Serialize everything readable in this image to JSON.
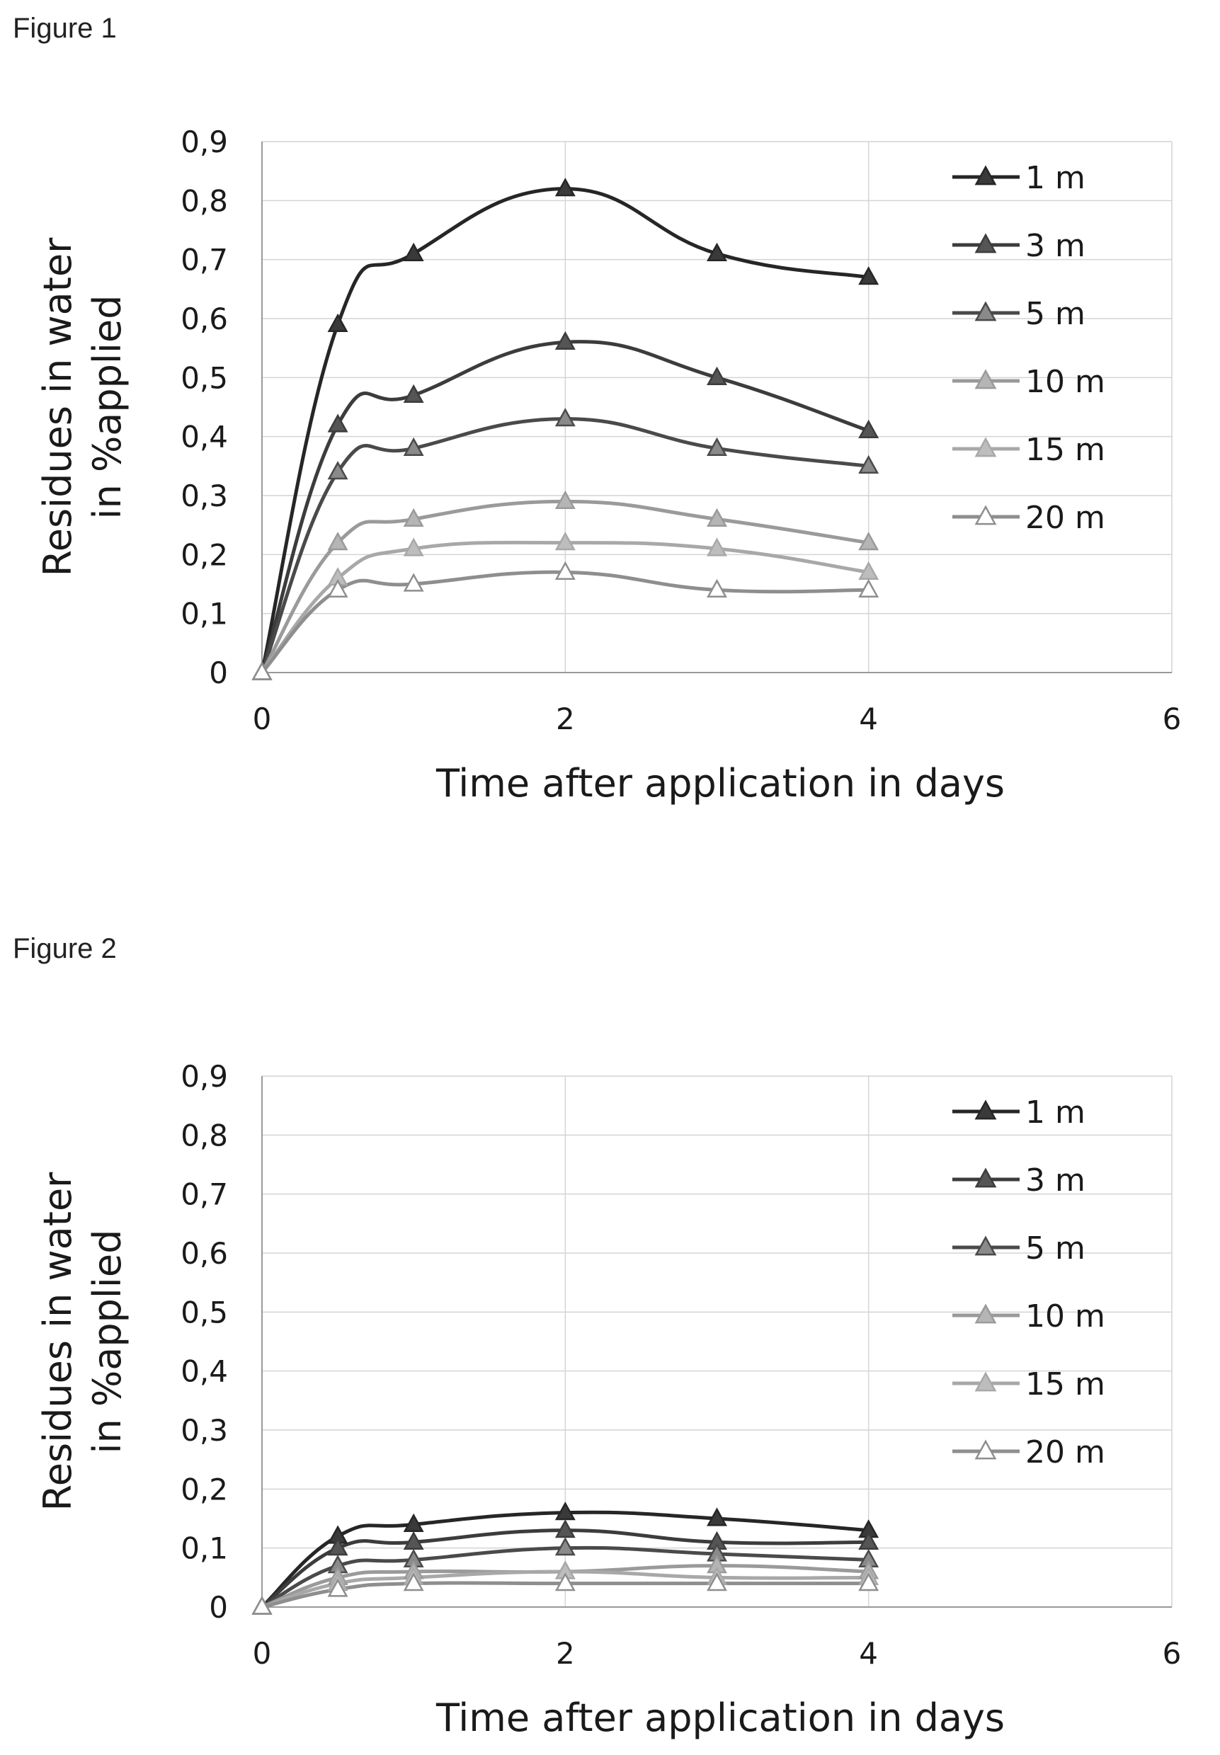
{
  "figures": [
    {
      "label": "Figure 1"
    },
    {
      "label": "Figure 2"
    }
  ],
  "chart_data": [
    {
      "type": "line",
      "title": "",
      "xlabel": "Time after application in days",
      "ylabel_lines": [
        "Residues in water",
        "in %applied"
      ],
      "xlim": [
        0,
        6
      ],
      "ylim": [
        0,
        0.9
      ],
      "x_ticks": [
        0,
        2,
        4,
        6
      ],
      "y_ticks": [
        0,
        0.1,
        0.2,
        0.3,
        0.4,
        0.5,
        0.6,
        0.7,
        0.8,
        0.9
      ],
      "x_tick_labels": [
        "0",
        "2",
        "4",
        "6"
      ],
      "y_tick_labels": [
        "0",
        "0,1",
        "0,2",
        "0,3",
        "0,4",
        "0,5",
        "0,6",
        "0,7",
        "0,8",
        "0,9"
      ],
      "grid": true,
      "legend_position": "top-right",
      "x": [
        0,
        0.5,
        1,
        2,
        3,
        4
      ],
      "series": [
        {
          "name": "1 m",
          "color": "#262626",
          "marker_fill": "#3a3a3a",
          "values": [
            0,
            0.59,
            0.71,
            0.82,
            0.71,
            0.67
          ]
        },
        {
          "name": "3 m",
          "color": "#3c3c3c",
          "marker_fill": "#555555",
          "values": [
            0,
            0.42,
            0.47,
            0.56,
            0.5,
            0.41
          ]
        },
        {
          "name": "5 m",
          "color": "#4a4a4a",
          "marker_fill": "#8a8a8a",
          "values": [
            0,
            0.34,
            0.38,
            0.43,
            0.38,
            0.35
          ]
        },
        {
          "name": "10 m",
          "color": "#9a9a9a",
          "marker_fill": "#b5b5b5",
          "values": [
            0,
            0.22,
            0.26,
            0.29,
            0.26,
            0.22
          ]
        },
        {
          "name": "15 m",
          "color": "#a8a8a8",
          "marker_fill": "#bdbdbd",
          "values": [
            0,
            0.16,
            0.21,
            0.22,
            0.21,
            0.17
          ]
        },
        {
          "name": "20 m",
          "color": "#8e8e8e",
          "marker_fill": "#ffffff",
          "values": [
            0,
            0.14,
            0.15,
            0.17,
            0.14,
            0.14
          ]
        }
      ]
    },
    {
      "type": "line",
      "title": "",
      "xlabel": "Time after application in days",
      "ylabel_lines": [
        "Residues in water",
        "in %applied"
      ],
      "xlim": [
        0,
        6
      ],
      "ylim": [
        0,
        0.9
      ],
      "x_ticks": [
        0,
        2,
        4,
        6
      ],
      "y_ticks": [
        0,
        0.1,
        0.2,
        0.3,
        0.4,
        0.5,
        0.6,
        0.7,
        0.8,
        0.9
      ],
      "x_tick_labels": [
        "0",
        "2",
        "4",
        "6"
      ],
      "y_tick_labels": [
        "0",
        "0,1",
        "0,2",
        "0,3",
        "0,4",
        "0,5",
        "0,6",
        "0,7",
        "0,8",
        "0,9"
      ],
      "grid": true,
      "legend_position": "top-right",
      "x": [
        0,
        0.5,
        1,
        2,
        3,
        4
      ],
      "series": [
        {
          "name": "1 m",
          "color": "#262626",
          "marker_fill": "#3a3a3a",
          "values": [
            0,
            0.12,
            0.14,
            0.16,
            0.15,
            0.13
          ]
        },
        {
          "name": "3 m",
          "color": "#3c3c3c",
          "marker_fill": "#555555",
          "values": [
            0,
            0.1,
            0.11,
            0.13,
            0.11,
            0.11
          ]
        },
        {
          "name": "5 m",
          "color": "#4a4a4a",
          "marker_fill": "#8a8a8a",
          "values": [
            0,
            0.07,
            0.08,
            0.1,
            0.09,
            0.08
          ]
        },
        {
          "name": "10 m",
          "color": "#9a9a9a",
          "marker_fill": "#b5b5b5",
          "values": [
            0,
            0.05,
            0.06,
            0.06,
            0.07,
            0.06
          ]
        },
        {
          "name": "15 m",
          "color": "#a8a8a8",
          "marker_fill": "#bdbdbd",
          "values": [
            0,
            0.04,
            0.05,
            0.06,
            0.05,
            0.05
          ]
        },
        {
          "name": "20 m",
          "color": "#8e8e8e",
          "marker_fill": "#ffffff",
          "values": [
            0,
            0.03,
            0.04,
            0.04,
            0.04,
            0.04
          ]
        }
      ]
    }
  ]
}
